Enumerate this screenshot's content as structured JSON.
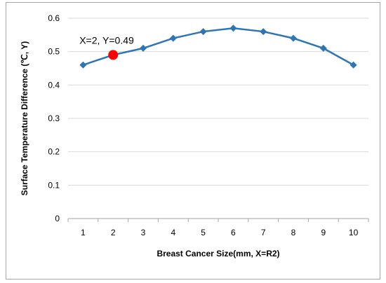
{
  "chart_data": {
    "type": "line",
    "x": [
      1,
      2,
      3,
      4,
      5,
      6,
      7,
      8,
      9,
      10
    ],
    "categories": [
      "1",
      "2",
      "3",
      "4",
      "5",
      "6",
      "7",
      "8",
      "9",
      "10"
    ],
    "series": [
      {
        "values": [
          0.46,
          0.49,
          0.51,
          0.54,
          0.56,
          0.57,
          0.56,
          0.54,
          0.51,
          0.46
        ]
      }
    ],
    "xlabel": "Breast Cancer Size(mm, X=R2)",
    "ylabel": "Surface Temperature Difference (℃, Y)",
    "ylim": [
      0,
      0.6
    ],
    "yticks": [
      "0",
      "0.1",
      "0.2",
      "0.3",
      "0.4",
      "0.5",
      "0.6"
    ],
    "grid": "horizontal",
    "highlight": {
      "x": 2,
      "y": 0.49,
      "label": "X=2, Y=0.49"
    },
    "colors": {
      "line": "#2e75b6",
      "marker": "#2e75b6",
      "highlight": "#ff0000",
      "grid": "#d9d9d9"
    }
  }
}
